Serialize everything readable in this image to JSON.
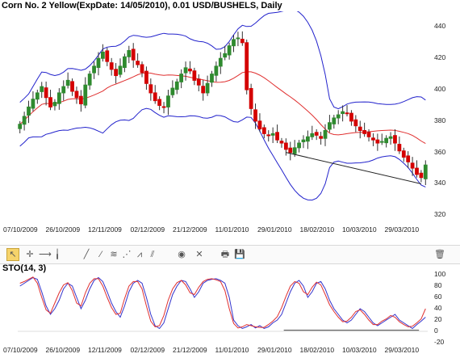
{
  "title": "Corn  No. 2 Yellow(ExpDate: 14/05/2010), 0.01 USD/BUSHELS, Daily",
  "sto_title": "STO(14, 3)",
  "colors": {
    "up": "#2f8a2f",
    "down": "#d40000",
    "band": "#2222cc",
    "ma": "#e03030",
    "trend": "#222",
    "k": "#3333cc",
    "d": "#e03030"
  },
  "main_y_ticks": [
    "440",
    "420",
    "400",
    "380",
    "360",
    "340",
    "320"
  ],
  "sto_y_ticks": [
    "100",
    "80",
    "60",
    "40",
    "20",
    "0",
    "-20"
  ],
  "x_ticks": [
    "07/10/2009",
    "26/10/2009",
    "12/11/2009",
    "02/12/2009",
    "21/12/2009",
    "11/01/2010",
    "29/01/2010",
    "18/02/2010",
    "10/03/2010",
    "29/03/2010"
  ],
  "toolbar": [
    {
      "name": "pointer-tool-icon",
      "glyph": "↖",
      "active": true
    },
    {
      "name": "crosshair-tool-icon",
      "glyph": "✛",
      "active": false
    },
    {
      "name": "horizontal-line-tool-icon",
      "glyph": "⟶",
      "active": false
    },
    {
      "name": "vertical-line-tool-icon",
      "glyph": "╽",
      "active": false
    },
    {
      "name": "trend-line-tool-icon",
      "glyph": "╱",
      "active": false
    },
    {
      "name": "ray-tool-icon",
      "glyph": "⁄",
      "active": false
    },
    {
      "name": "fibonacci-fan-tool-icon",
      "glyph": "≋",
      "active": false
    },
    {
      "name": "gann-fan-tool-icon",
      "glyph": "⋰",
      "active": false
    },
    {
      "name": "andrews-pitchfork-tool-icon",
      "glyph": "⩘",
      "active": false
    },
    {
      "name": "channel-tool-icon",
      "glyph": "⫽",
      "active": false
    },
    {
      "name": "ellipse-tool-icon",
      "glyph": "◉",
      "active": false
    },
    {
      "name": "delete-drawing-icon",
      "glyph": "✕",
      "active": false
    },
    {
      "name": "print-icon",
      "glyph": "🖶",
      "active": false
    },
    {
      "name": "save-icon",
      "glyph": "💾",
      "active": false
    },
    {
      "name": "trash-icon",
      "glyph": "🗑",
      "active": false
    }
  ],
  "chart_data": [
    {
      "type": "candlestick",
      "title": "Corn  No. 2 Yellow(ExpDate: 14/05/2010), 0.01 USD/BUSHELS, Daily",
      "x_labels": [
        "07/10/2009",
        "26/10/2009",
        "12/11/2009",
        "02/12/2009",
        "21/12/2009",
        "11/01/2010",
        "29/01/2010",
        "18/02/2010",
        "10/03/2010",
        "29/03/2010"
      ],
      "ylim": [
        315,
        450
      ],
      "closes": [
        378,
        383,
        389,
        394,
        398,
        402,
        395,
        389,
        392,
        398,
        402,
        406,
        399,
        395,
        391,
        403,
        410,
        415,
        420,
        424,
        418,
        413,
        409,
        415,
        421,
        425,
        419,
        416,
        411,
        404,
        398,
        393,
        390,
        389,
        396,
        401,
        405,
        410,
        414,
        412,
        406,
        403,
        398,
        404,
        410,
        415,
        420,
        423,
        428,
        432,
        433,
        430,
        400,
        388,
        380,
        375,
        372,
        371,
        372,
        368,
        366,
        362,
        360,
        363,
        366,
        368,
        370,
        372,
        371,
        369,
        374,
        379,
        382,
        384,
        386,
        385,
        380,
        377,
        374,
        372,
        370,
        368,
        366,
        367,
        369,
        370,
        366,
        361,
        357,
        354,
        350,
        346,
        344,
        352
      ],
      "bands": [
        {
          "name": "upper"
        },
        {
          "name": "middle"
        },
        {
          "name": "lower"
        }
      ],
      "grid": false
    },
    {
      "type": "line",
      "title": "STO(14, 3)",
      "ylim": [
        -20,
        100
      ],
      "series": [
        {
          "values": [
            80,
            85,
            90,
            95,
            92,
            70,
            45,
            30,
            40,
            55,
            75,
            85,
            80,
            60,
            40,
            55,
            75,
            90,
            95,
            88,
            70,
            50,
            35,
            25,
            45,
            70,
            85,
            90,
            85,
            60,
            30,
            10,
            5,
            15,
            40,
            65,
            80,
            90,
            88,
            75,
            60,
            70,
            85,
            90,
            92,
            93,
            90,
            85,
            60,
            20,
            10,
            5,
            8,
            12,
            6,
            10,
            5,
            8,
            15,
            20,
            30,
            50,
            70,
            85,
            90,
            80,
            60,
            70,
            85,
            88,
            75,
            55,
            40,
            30,
            20,
            15,
            20,
            30,
            40,
            35,
            25,
            15,
            10,
            15,
            20,
            25,
            30,
            20,
            15,
            10,
            5,
            12,
            18,
            25
          ]
        },
        {
          "values": [
            85,
            88,
            92,
            96,
            85,
            60,
            38,
            32,
            50,
            68,
            82,
            86,
            72,
            50,
            45,
            68,
            85,
            93,
            93,
            80,
            60,
            42,
            30,
            32,
            58,
            80,
            88,
            88,
            75,
            45,
            18,
            8,
            10,
            28,
            55,
            75,
            86,
            90,
            82,
            68,
            65,
            78,
            88,
            92,
            93,
            91,
            88,
            72,
            40,
            14,
            6,
            8,
            12,
            10,
            8,
            7,
            7,
            12,
            18,
            26,
            42,
            62,
            80,
            88,
            85,
            70,
            65,
            78,
            87,
            82,
            65,
            47,
            35,
            25,
            17,
            18,
            25,
            35,
            38,
            30,
            20,
            12,
            12,
            18,
            22,
            28,
            25,
            17,
            12,
            8,
            9,
            15,
            22,
            40
          ]
        }
      ],
      "reference_lines": []
    }
  ]
}
